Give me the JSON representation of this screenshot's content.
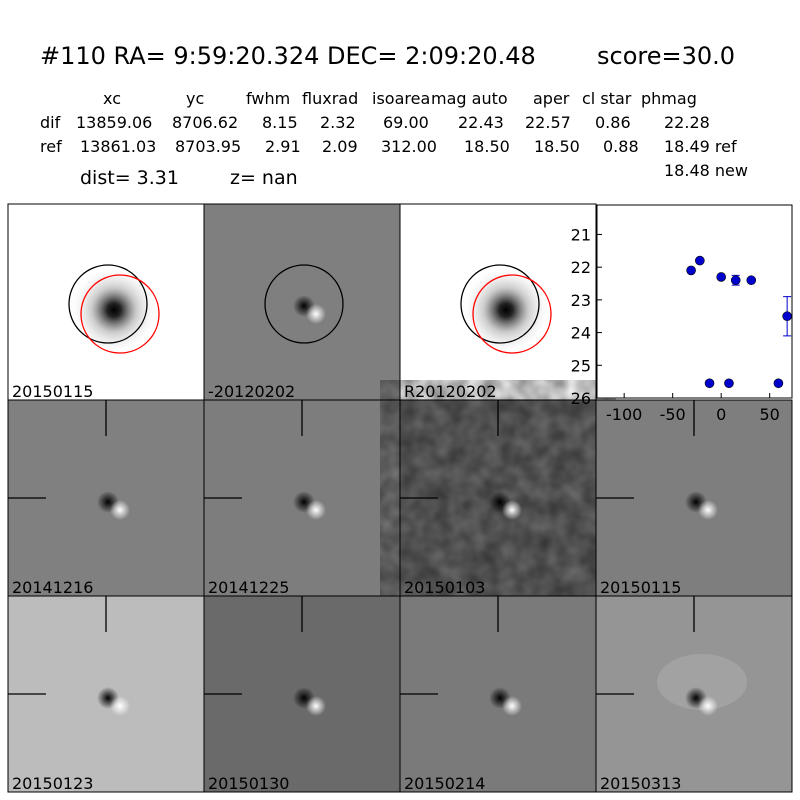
{
  "header": {
    "title": "#110   RA= 9:59:20.324 DEC= 2:09:20.48",
    "score": "score=30.0"
  },
  "table": {
    "columns": [
      "xc",
      "yc",
      "fwhm",
      "fluxrad",
      "isoarea",
      "mag auto",
      "aper",
      "cl star",
      "phmag"
    ],
    "rows": [
      [
        "dif",
        "13859.06",
        "8706.62",
        "8.15",
        "2.32",
        "69.00",
        "22.43",
        "22.57",
        "0.86",
        "22.28"
      ],
      [
        "ref",
        "13861.03",
        "8703.95",
        "2.91",
        "2.09",
        "312.00",
        "18.50",
        "18.50",
        "0.88",
        "18.49 ref"
      ]
    ],
    "extra": "18.48 new"
  },
  "dist": "dist=  3.31",
  "z": "z=   nan",
  "stamps": [
    {
      "label": "20150115",
      "background": "#ffffff",
      "label_color": "#000000"
    },
    {
      "label": "-20120202",
      "background": "#7f7f7f",
      "label_color": "#000000"
    },
    {
      "label": "R20120202",
      "background": "#ffffff",
      "label_color": "#000000"
    },
    {
      "label": "20141216",
      "background": "#808080",
      "label_color": "#000000"
    },
    {
      "label": "20141225",
      "background": "#7d7d7d",
      "label_color": "#000000"
    },
    {
      "label": "20150103",
      "background": "#6f6f6f",
      "label_color": "#000000"
    },
    {
      "label": "20150115",
      "background": "#7e7e7e",
      "label_color": "#ff0000"
    },
    {
      "label": "20150123",
      "background": "#bcbcbc",
      "label_color": "#000000"
    },
    {
      "label": "20150130",
      "background": "#6a6a6a",
      "label_color": "#000000"
    },
    {
      "label": "20150214",
      "background": "#7a7a7a",
      "label_color": "#000000"
    },
    {
      "label": "20150313",
      "background": "#959595",
      "label_color": "#000000"
    }
  ],
  "chart_data": {
    "type": "scatter",
    "color": "#0000cc",
    "x": [
      -31,
      -22,
      -12,
      0,
      8,
      15,
      31,
      59,
      68
    ],
    "values": [
      22.1,
      21.8,
      25.55,
      22.3,
      25.55,
      22.4,
      22.4,
      25.55,
      23.5
    ],
    "errors": [
      null,
      null,
      null,
      null,
      null,
      0.15,
      null,
      null,
      0.6
    ],
    "xlim": [
      -128,
      73
    ],
    "ylim": [
      20.1,
      26
    ],
    "y_inverted": true,
    "xticks": [
      -100,
      -50,
      0,
      50
    ],
    "yticks": [
      21,
      22,
      23,
      24,
      25,
      26
    ]
  }
}
